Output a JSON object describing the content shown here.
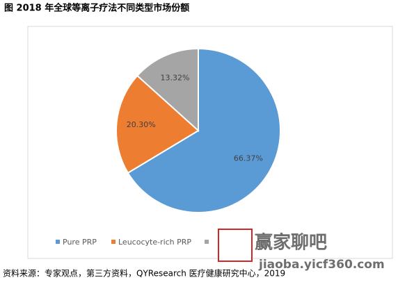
{
  "chart_data": {
    "type": "pie",
    "title": "图 2018 年全球等离子疗法不同类型市场份额",
    "categories": [
      "Pure PRP",
      "Leucocyte-rich PRP",
      null
    ],
    "values": [
      66.37,
      20.3,
      13.32
    ],
    "value_labels": [
      "66.37%",
      "20.30%",
      "13.32%"
    ],
    "colors": [
      "#5b9bd5",
      "#ed7d31",
      "#a5a5a5"
    ],
    "legend": "bottom",
    "source": "资料来源：专家观点，第三方资料，QYResearch 医疗健康研究中心，2019",
    "watermark": [
      "赢家聊吧",
      "jiaoba.yicf360.com"
    ]
  }
}
